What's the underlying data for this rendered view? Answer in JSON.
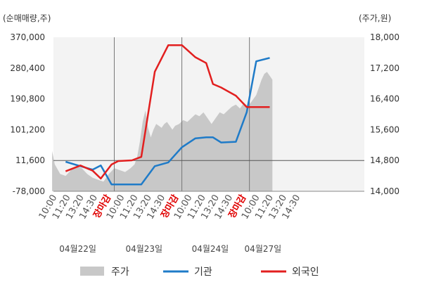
{
  "chart_data": {
    "type": "line",
    "left_axis_unit": "(순매매량,주)",
    "right_axis_unit": "(주가,원)",
    "left_ticks": [
      "370,000",
      "280,400",
      "190,800",
      "101,200",
      "11,600",
      "-78,000"
    ],
    "right_ticks": [
      "18,000",
      "17,200",
      "16,400",
      "15,600",
      "14,800",
      "14,000"
    ],
    "ylim_left": [
      -78000,
      370000
    ],
    "ylim_right": [
      14000,
      18000
    ],
    "xlim": [
      0,
      23
    ],
    "x_ticks": [
      {
        "x": 0,
        "label": "10:00",
        "close": false
      },
      {
        "x": 1,
        "label": "11:20",
        "close": false
      },
      {
        "x": 2,
        "label": "13:20",
        "close": false
      },
      {
        "x": 3,
        "label": "14:30",
        "close": false
      },
      {
        "x": 4,
        "label": "장마감",
        "close": true
      },
      {
        "x": 5,
        "label": "10:00",
        "close": false
      },
      {
        "x": 6,
        "label": "11:20",
        "close": false
      },
      {
        "x": 7,
        "label": "13:20",
        "close": false
      },
      {
        "x": 8,
        "label": "14:30",
        "close": false
      },
      {
        "x": 9,
        "label": "장마감",
        "close": true
      },
      {
        "x": 10,
        "label": "10:00",
        "close": false
      },
      {
        "x": 11,
        "label": "11:20",
        "close": false
      },
      {
        "x": 12,
        "label": "13:20",
        "close": false
      },
      {
        "x": 13,
        "label": "14:30",
        "close": false
      },
      {
        "x": 14,
        "label": "장마감",
        "close": true
      },
      {
        "x": 15,
        "label": "10:00",
        "close": false
      },
      {
        "x": 16,
        "label": "11:20",
        "close": false
      },
      {
        "x": 17,
        "label": "13:20",
        "close": false
      },
      {
        "x": 18,
        "label": "14:30",
        "close": false
      }
    ],
    "dates": [
      {
        "x": 1.8,
        "label": "04월22일"
      },
      {
        "x": 6.7,
        "label": "04월23일"
      },
      {
        "x": 11.6,
        "label": "04월24일"
      },
      {
        "x": 15.5,
        "label": "04월27일"
      }
    ],
    "day_separators": [
      4.5,
      9.5,
      14.5
    ],
    "reference_line": 11600,
    "price_series": {
      "name": "주가",
      "axis": "right",
      "color": "#c8c8c8",
      "x": [
        -0.1,
        0.1,
        0.5,
        0.9,
        1.3,
        1.7,
        2.1,
        2.5,
        2.9,
        3.3,
        3.7,
        4.1,
        4.5,
        4.9,
        5.3,
        5.7,
        6.0,
        6.2,
        6.4,
        6.6,
        6.8,
        7.0,
        7.2,
        7.4,
        7.6,
        7.8,
        8.0,
        8.2,
        8.4,
        8.6,
        8.8,
        9.0,
        9.3,
        9.6,
        9.9,
        10.2,
        10.5,
        10.8,
        11.1,
        11.4,
        11.7,
        12.0,
        12.3,
        12.6,
        12.9,
        13.2,
        13.5,
        13.8,
        14.1,
        14.4,
        14.7,
        15.0,
        15.2,
        15.4,
        15.6,
        15.8,
        16.0,
        16.2
      ],
      "values": [
        15050,
        14700,
        14450,
        14400,
        14550,
        14650,
        14600,
        14450,
        14350,
        14300,
        14250,
        14450,
        14600,
        14550,
        14500,
        14600,
        14700,
        14900,
        15300,
        15800,
        16100,
        15650,
        15400,
        15600,
        15750,
        15700,
        15650,
        15750,
        15800,
        15700,
        15600,
        15700,
        15750,
        15850,
        15800,
        15900,
        16000,
        15950,
        16050,
        15900,
        15750,
        15900,
        16050,
        16000,
        16100,
        16200,
        16250,
        16150,
        16300,
        16200,
        16350,
        16500,
        16700,
        16900,
        17050,
        17100,
        17000,
        16900
      ]
    },
    "series": [
      {
        "name": "기관",
        "axis": "left",
        "color": "#1f7bc8",
        "x": [
          0.9,
          2.0,
          2.9,
          3.5,
          4.3,
          4.8,
          5.8,
          6.5,
          7.5,
          8.5,
          9.5,
          10.5,
          11.3,
          11.8,
          12.4,
          13.5,
          14.3,
          15.0,
          16.0
        ],
        "values": [
          8000,
          -5000,
          -15000,
          -3000,
          -58000,
          -58000,
          -58000,
          -58000,
          -5000,
          6000,
          50000,
          76000,
          79000,
          79000,
          64000,
          66000,
          152000,
          300000,
          310000
        ]
      },
      {
        "name": "외국인",
        "axis": "left",
        "color": "#e21f1f",
        "x": [
          0.9,
          2.0,
          2.9,
          3.5,
          4.3,
          4.8,
          5.8,
          6.5,
          7.5,
          8.5,
          9.5,
          10.5,
          11.3,
          11.8,
          12.4,
          13.5,
          14.3,
          15.0,
          16.0
        ],
        "values": [
          -20000,
          -3000,
          -18000,
          -41000,
          0,
          10000,
          12000,
          22000,
          270000,
          347000,
          347000,
          312000,
          295000,
          234000,
          224000,
          200000,
          167000,
          167000,
          167000
        ]
      }
    ],
    "legend": [
      {
        "name": "주가",
        "type": "area",
        "color": "#c8c8c8"
      },
      {
        "name": "기관",
        "type": "line",
        "color": "#1f7bc8"
      },
      {
        "name": "외국인",
        "type": "line",
        "color": "#e21f1f"
      }
    ],
    "grid": false,
    "legend_position": "bottom"
  }
}
